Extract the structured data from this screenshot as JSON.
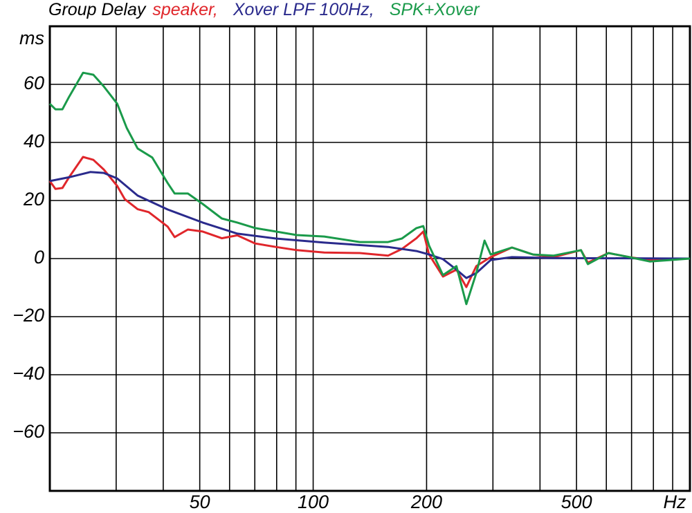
{
  "chart_data": {
    "type": "line",
    "title": "Group Delay",
    "x_unit_label": "Hz",
    "y_unit_label": "ms",
    "xscale": "log",
    "xlim": [
      20,
      1000
    ],
    "xticks": [
      50,
      100,
      200,
      500
    ],
    "xminor_ticks": [
      30,
      40,
      60,
      70,
      80,
      90,
      300,
      400,
      600,
      700,
      800,
      900
    ],
    "ylim": [
      -80,
      80
    ],
    "yticks": [
      {
        "value": -60,
        "label": "−60"
      },
      {
        "value": -40,
        "label": "−40"
      },
      {
        "value": -20,
        "label": "−20"
      },
      0,
      20,
      40,
      60
    ],
    "grid": true,
    "series": [
      {
        "name": "speaker,",
        "color": "#e0262b",
        "x": [
          20,
          20.7,
          21.6,
          22.5,
          24.5,
          26.1,
          27.8,
          30.2,
          31.6,
          34.2,
          36.6,
          41.1,
          42.9,
          46.5,
          50.9,
          57.2,
          62.9,
          70.2,
          79.6,
          90.5,
          107,
          133,
          158,
          172,
          188,
          196,
          203,
          221,
          240,
          255,
          271,
          296,
          337,
          383,
          434,
          514,
          536,
          608,
          690,
          782,
          887,
          1000
        ],
        "values": [
          26.7,
          24,
          24.3,
          28,
          35,
          34,
          30.7,
          25,
          20.5,
          17,
          16,
          11,
          7.4,
          10,
          9.3,
          7,
          8,
          5.2,
          4,
          2.9,
          2.1,
          1.9,
          1,
          3.3,
          7,
          9.3,
          1.4,
          -6.2,
          -3.8,
          -9.8,
          -2.6,
          0.5,
          3.8,
          1.4,
          0.5,
          2.9,
          -1.4,
          1.9,
          0.5,
          -0.5,
          0,
          0
        ]
      },
      {
        "name": "Xover LPF 100Hz,",
        "color": "#2a2a8c",
        "x": [
          20,
          22.5,
          25.6,
          27.8,
          30.2,
          34.2,
          41.1,
          50.9,
          62.9,
          79.6,
          107,
          158,
          188,
          203,
          221,
          240,
          255,
          271,
          296,
          337,
          434,
          1000
        ],
        "values": [
          26.7,
          28,
          29.8,
          29.5,
          27.6,
          21.7,
          16.9,
          12.4,
          8.6,
          6.9,
          5.5,
          4,
          2.6,
          1.4,
          -0.2,
          -3.8,
          -6.7,
          -5,
          -0.5,
          0.5,
          0.2,
          0
        ]
      },
      {
        "name": "SPK+Xover",
        "color": "#1a9a4a",
        "x": [
          20,
          20.7,
          21.6,
          22.5,
          24.5,
          26.1,
          27.8,
          30.2,
          32.0,
          34.2,
          37.4,
          41.1,
          42.9,
          46.5,
          50.9,
          57.2,
          62.9,
          70.2,
          79.6,
          90.5,
          107,
          133,
          158,
          172,
          188,
          196,
          203,
          221,
          240,
          255,
          271,
          285,
          296,
          337,
          383,
          434,
          514,
          536,
          608,
          690,
          782,
          887,
          1000
        ],
        "values": [
          53.3,
          51.4,
          51.4,
          55.7,
          64,
          63.3,
          59.3,
          53.3,
          45,
          37.9,
          34.8,
          26,
          22.4,
          22.4,
          18.8,
          13.8,
          12.4,
          10.5,
          9.3,
          8.1,
          7.6,
          5.7,
          5.7,
          6.9,
          10.5,
          11.2,
          4.5,
          -5.7,
          -2.6,
          -15.7,
          -5,
          6.2,
          1.4,
          3.8,
          1.4,
          1,
          2.9,
          -1.9,
          1.9,
          0.5,
          -1,
          -0.5,
          0
        ]
      }
    ]
  }
}
